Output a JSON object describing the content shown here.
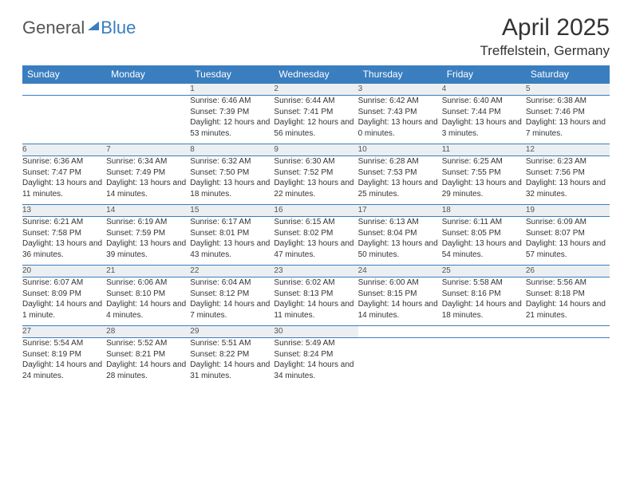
{
  "brand": {
    "part1": "General",
    "part2": "Blue"
  },
  "title": "April 2025",
  "location": "Treffelstein, Germany",
  "colors": {
    "header_bg": "#3a7ebf",
    "header_text": "#ffffff",
    "daynum_bg": "#eceff1",
    "border": "#3a7ebf",
    "text": "#333333"
  },
  "weekdays": [
    "Sunday",
    "Monday",
    "Tuesday",
    "Wednesday",
    "Thursday",
    "Friday",
    "Saturday"
  ],
  "weeks": [
    [
      null,
      null,
      {
        "n": "1",
        "sunrise": "6:46 AM",
        "sunset": "7:39 PM",
        "daylight": "12 hours and 53 minutes."
      },
      {
        "n": "2",
        "sunrise": "6:44 AM",
        "sunset": "7:41 PM",
        "daylight": "12 hours and 56 minutes."
      },
      {
        "n": "3",
        "sunrise": "6:42 AM",
        "sunset": "7:43 PM",
        "daylight": "13 hours and 0 minutes."
      },
      {
        "n": "4",
        "sunrise": "6:40 AM",
        "sunset": "7:44 PM",
        "daylight": "13 hours and 3 minutes."
      },
      {
        "n": "5",
        "sunrise": "6:38 AM",
        "sunset": "7:46 PM",
        "daylight": "13 hours and 7 minutes."
      }
    ],
    [
      {
        "n": "6",
        "sunrise": "6:36 AM",
        "sunset": "7:47 PM",
        "daylight": "13 hours and 11 minutes."
      },
      {
        "n": "7",
        "sunrise": "6:34 AM",
        "sunset": "7:49 PM",
        "daylight": "13 hours and 14 minutes."
      },
      {
        "n": "8",
        "sunrise": "6:32 AM",
        "sunset": "7:50 PM",
        "daylight": "13 hours and 18 minutes."
      },
      {
        "n": "9",
        "sunrise": "6:30 AM",
        "sunset": "7:52 PM",
        "daylight": "13 hours and 22 minutes."
      },
      {
        "n": "10",
        "sunrise": "6:28 AM",
        "sunset": "7:53 PM",
        "daylight": "13 hours and 25 minutes."
      },
      {
        "n": "11",
        "sunrise": "6:25 AM",
        "sunset": "7:55 PM",
        "daylight": "13 hours and 29 minutes."
      },
      {
        "n": "12",
        "sunrise": "6:23 AM",
        "sunset": "7:56 PM",
        "daylight": "13 hours and 32 minutes."
      }
    ],
    [
      {
        "n": "13",
        "sunrise": "6:21 AM",
        "sunset": "7:58 PM",
        "daylight": "13 hours and 36 minutes."
      },
      {
        "n": "14",
        "sunrise": "6:19 AM",
        "sunset": "7:59 PM",
        "daylight": "13 hours and 39 minutes."
      },
      {
        "n": "15",
        "sunrise": "6:17 AM",
        "sunset": "8:01 PM",
        "daylight": "13 hours and 43 minutes."
      },
      {
        "n": "16",
        "sunrise": "6:15 AM",
        "sunset": "8:02 PM",
        "daylight": "13 hours and 47 minutes."
      },
      {
        "n": "17",
        "sunrise": "6:13 AM",
        "sunset": "8:04 PM",
        "daylight": "13 hours and 50 minutes."
      },
      {
        "n": "18",
        "sunrise": "6:11 AM",
        "sunset": "8:05 PM",
        "daylight": "13 hours and 54 minutes."
      },
      {
        "n": "19",
        "sunrise": "6:09 AM",
        "sunset": "8:07 PM",
        "daylight": "13 hours and 57 minutes."
      }
    ],
    [
      {
        "n": "20",
        "sunrise": "6:07 AM",
        "sunset": "8:09 PM",
        "daylight": "14 hours and 1 minute."
      },
      {
        "n": "21",
        "sunrise": "6:06 AM",
        "sunset": "8:10 PM",
        "daylight": "14 hours and 4 minutes."
      },
      {
        "n": "22",
        "sunrise": "6:04 AM",
        "sunset": "8:12 PM",
        "daylight": "14 hours and 7 minutes."
      },
      {
        "n": "23",
        "sunrise": "6:02 AM",
        "sunset": "8:13 PM",
        "daylight": "14 hours and 11 minutes."
      },
      {
        "n": "24",
        "sunrise": "6:00 AM",
        "sunset": "8:15 PM",
        "daylight": "14 hours and 14 minutes."
      },
      {
        "n": "25",
        "sunrise": "5:58 AM",
        "sunset": "8:16 PM",
        "daylight": "14 hours and 18 minutes."
      },
      {
        "n": "26",
        "sunrise": "5:56 AM",
        "sunset": "8:18 PM",
        "daylight": "14 hours and 21 minutes."
      }
    ],
    [
      {
        "n": "27",
        "sunrise": "5:54 AM",
        "sunset": "8:19 PM",
        "daylight": "14 hours and 24 minutes."
      },
      {
        "n": "28",
        "sunrise": "5:52 AM",
        "sunset": "8:21 PM",
        "daylight": "14 hours and 28 minutes."
      },
      {
        "n": "29",
        "sunrise": "5:51 AM",
        "sunset": "8:22 PM",
        "daylight": "14 hours and 31 minutes."
      },
      {
        "n": "30",
        "sunrise": "5:49 AM",
        "sunset": "8:24 PM",
        "daylight": "14 hours and 34 minutes."
      },
      null,
      null,
      null
    ]
  ],
  "labels": {
    "sunrise": "Sunrise:",
    "sunset": "Sunset:",
    "daylight": "Daylight:"
  }
}
